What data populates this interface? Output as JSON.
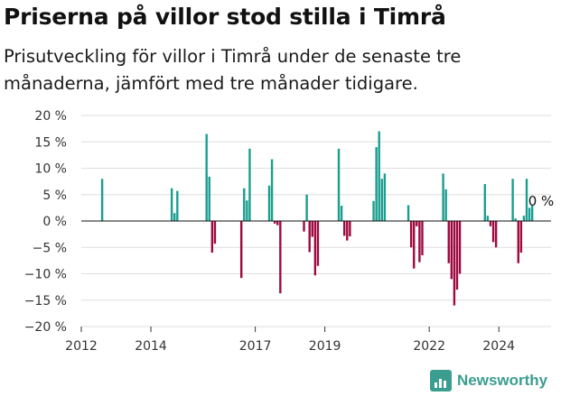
{
  "header": {
    "title": "Priserna på villor stod stilla i Timrå",
    "subtitle": "Prisutveckling för villor i Timrå under de senaste tre månaderna, jämfört med tre månader tidigare."
  },
  "branding": {
    "logo_text": "Newsworthy",
    "logo_icon": "bar-chart-icon"
  },
  "colors": {
    "positive": "#1a9e8f",
    "negative": "#9e0a3f",
    "grid": "#dedede",
    "brand": "#3a9d8f"
  },
  "chart_data": {
    "type": "bar",
    "y_unit": "%",
    "ylim": [
      -20,
      20
    ],
    "yticks": [
      "20 %",
      "15 %",
      "10 %",
      "5 %",
      "0 %",
      "−5 %",
      "−10 %",
      "−15 %",
      "−20 %"
    ],
    "ytick_values": [
      20,
      15,
      10,
      5,
      0,
      -5,
      -10,
      -15,
      -20
    ],
    "xticks": [
      "2012",
      "2014",
      "2017",
      "2019",
      "2022",
      "2024"
    ],
    "xtick_values": [
      2012.0,
      2014.0,
      2017.0,
      2019.0,
      2022.0,
      2024.0
    ],
    "xlim": [
      2012.0,
      2025.5
    ],
    "annotation": {
      "text": "0 %",
      "x": 2025.0,
      "y": 0
    },
    "grid": true,
    "series": [
      {
        "x": 2012.6,
        "y": 8.0
      },
      {
        "x": 2014.6,
        "y": 6.2
      },
      {
        "x": 2014.68,
        "y": 1.5
      },
      {
        "x": 2014.76,
        "y": 5.7
      },
      {
        "x": 2015.6,
        "y": 16.5
      },
      {
        "x": 2015.68,
        "y": 8.4
      },
      {
        "x": 2015.76,
        "y": -6.0
      },
      {
        "x": 2015.84,
        "y": -4.3
      },
      {
        "x": 2016.6,
        "y": -10.8
      },
      {
        "x": 2016.68,
        "y": 6.2
      },
      {
        "x": 2016.76,
        "y": 3.9
      },
      {
        "x": 2016.84,
        "y": 13.7
      },
      {
        "x": 2017.4,
        "y": 6.7
      },
      {
        "x": 2017.48,
        "y": 11.7
      },
      {
        "x": 2017.56,
        "y": -0.5
      },
      {
        "x": 2017.64,
        "y": -0.8
      },
      {
        "x": 2017.72,
        "y": -13.7
      },
      {
        "x": 2018.4,
        "y": -2.0
      },
      {
        "x": 2018.48,
        "y": 5.0
      },
      {
        "x": 2018.56,
        "y": -5.9
      },
      {
        "x": 2018.64,
        "y": -3.0
      },
      {
        "x": 2018.72,
        "y": -10.3
      },
      {
        "x": 2018.8,
        "y": -8.5
      },
      {
        "x": 2019.4,
        "y": 13.7
      },
      {
        "x": 2019.48,
        "y": 2.9
      },
      {
        "x": 2019.56,
        "y": -2.8
      },
      {
        "x": 2019.64,
        "y": -3.7
      },
      {
        "x": 2019.72,
        "y": -2.9
      },
      {
        "x": 2020.4,
        "y": 3.8
      },
      {
        "x": 2020.48,
        "y": 14.0
      },
      {
        "x": 2020.56,
        "y": 17.0
      },
      {
        "x": 2020.64,
        "y": 8.0
      },
      {
        "x": 2020.72,
        "y": 9.0
      },
      {
        "x": 2021.4,
        "y": 3.0
      },
      {
        "x": 2021.48,
        "y": -5.0
      },
      {
        "x": 2021.56,
        "y": -9.0
      },
      {
        "x": 2021.64,
        "y": -1.0
      },
      {
        "x": 2021.72,
        "y": -7.8
      },
      {
        "x": 2021.8,
        "y": -6.5
      },
      {
        "x": 2022.4,
        "y": 9.0
      },
      {
        "x": 2022.48,
        "y": 6.0
      },
      {
        "x": 2022.56,
        "y": -8.0
      },
      {
        "x": 2022.64,
        "y": -11.0
      },
      {
        "x": 2022.72,
        "y": -16.0
      },
      {
        "x": 2022.8,
        "y": -13.0
      },
      {
        "x": 2022.88,
        "y": -10.0
      },
      {
        "x": 2023.6,
        "y": 7.0
      },
      {
        "x": 2023.68,
        "y": 1.0
      },
      {
        "x": 2023.76,
        "y": -1.0
      },
      {
        "x": 2023.84,
        "y": -4.0
      },
      {
        "x": 2023.92,
        "y": -5.0
      },
      {
        "x": 2024.4,
        "y": 8.0
      },
      {
        "x": 2024.48,
        "y": 0.5
      },
      {
        "x": 2024.56,
        "y": -8.0
      },
      {
        "x": 2024.64,
        "y": -6.0
      },
      {
        "x": 2024.72,
        "y": 1.0
      },
      {
        "x": 2024.8,
        "y": 8.0
      },
      {
        "x": 2024.88,
        "y": 2.5
      },
      {
        "x": 2024.96,
        "y": 3.0
      }
    ]
  }
}
